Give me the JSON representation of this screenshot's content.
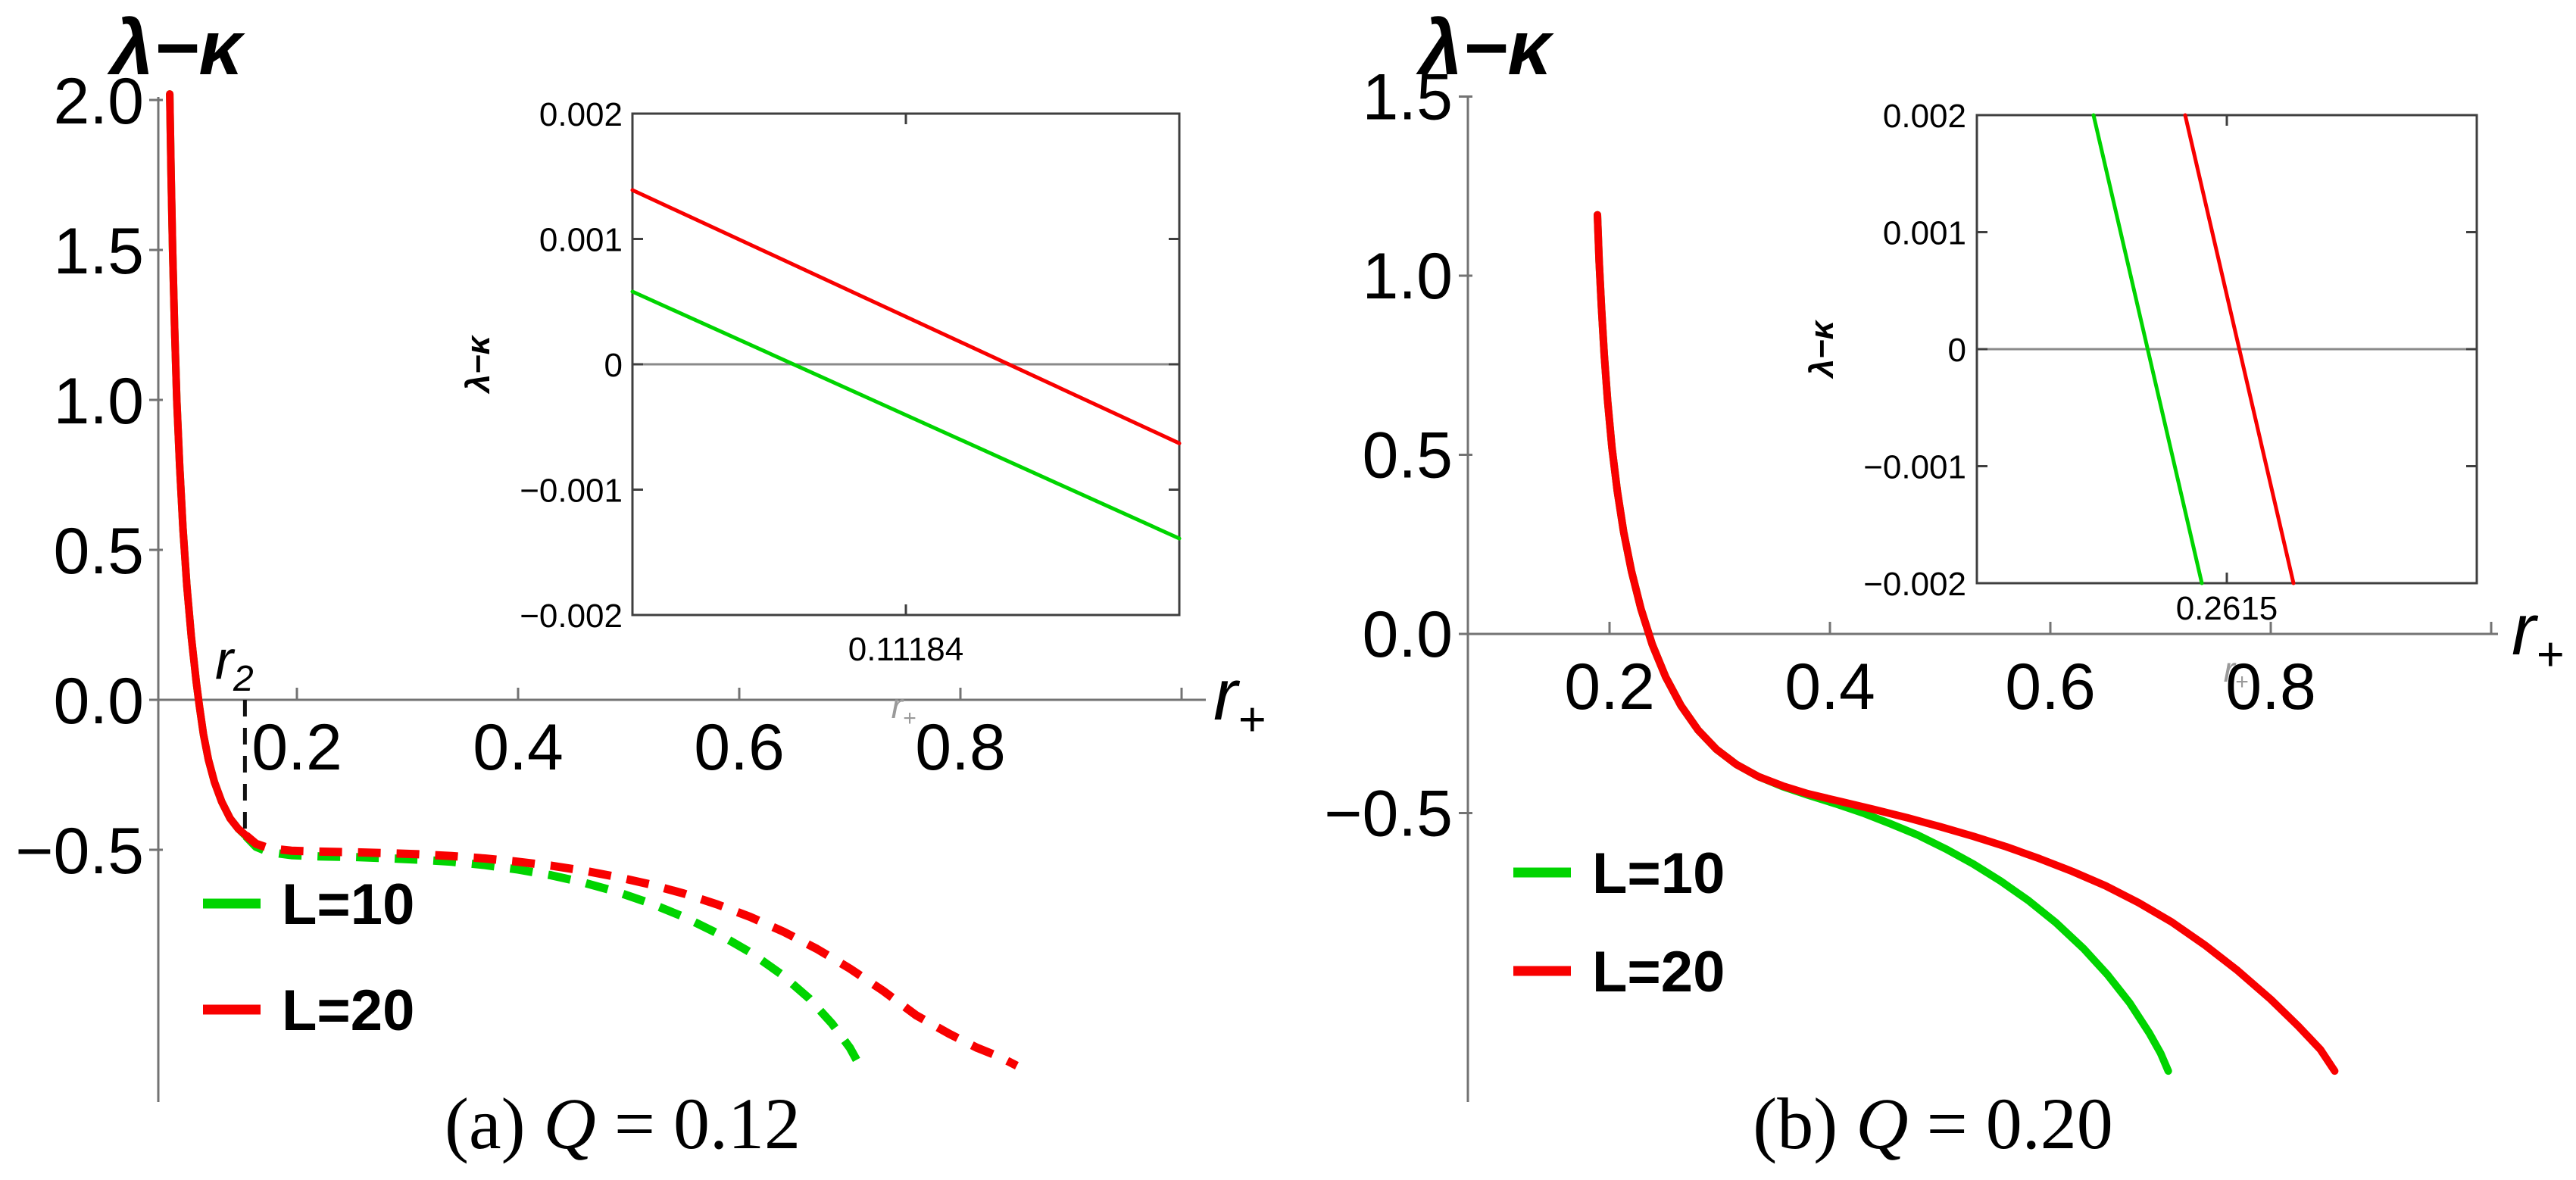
{
  "style": {
    "axis_color": "#737373",
    "inset_frame_color": "#3f3f3f",
    "inset_zero_line_color": "#8a8a8a",
    "text_color": "#000000",
    "muted_label_color": "#9a9a9a",
    "green": "#00d400",
    "red": "#f80000"
  },
  "chart_data": [
    {
      "id": "a",
      "type": "line",
      "caption": "(a) Q = 0.12",
      "caption_parts": {
        "prefix": "(a) ",
        "variable": "Q",
        "suffix": " = 0.12"
      },
      "ylabel": "λ−κ",
      "xlabel": {
        "base": "r",
        "sub": "+"
      },
      "xlim": [
        0.07,
        1.02
      ],
      "ylim": [
        -1.22,
        2.02
      ],
      "x_ticks": [
        {
          "value": 0.2,
          "label": "0.2"
        },
        {
          "value": 0.4,
          "label": "0.4"
        },
        {
          "value": 0.6,
          "label": "0.6"
        },
        {
          "value": 0.8,
          "label": "0.8"
        }
      ],
      "x_axis_end_tick": 1.0,
      "y_ticks": [
        {
          "value": 2.0,
          "label": "2.0"
        },
        {
          "value": 1.5,
          "label": "1.5"
        },
        {
          "value": 1.0,
          "label": "1.0"
        },
        {
          "value": 0.5,
          "label": "0.5"
        },
        {
          "value": 0.0,
          "label": "0.0"
        },
        {
          "value": -0.5,
          "label": "−0.5"
        }
      ],
      "marker": {
        "base": "r",
        "sub": "2",
        "x": 0.153
      },
      "legend": [
        {
          "label": "L=10",
          "color": "#00d400"
        },
        {
          "label": "L=20",
          "color": "#f80000"
        }
      ],
      "series": [
        {
          "name": "L=10",
          "color": "#00d400",
          "solid": [
            [
              0.085,
              2.02
            ],
            [
              0.0862,
              1.75
            ],
            [
              0.0876,
              1.5
            ],
            [
              0.0893,
              1.25
            ],
            [
              0.0914,
              1.0
            ],
            [
              0.094,
              0.78
            ],
            [
              0.097,
              0.57
            ],
            [
              0.1005,
              0.38
            ],
            [
              0.1045,
              0.21
            ],
            [
              0.109,
              0.06
            ],
            [
              0.1118,
              -0.02
            ],
            [
              0.1155,
              -0.115
            ],
            [
              0.12,
              -0.2
            ],
            [
              0.1255,
              -0.275
            ],
            [
              0.132,
              -0.34
            ],
            [
              0.1395,
              -0.395
            ],
            [
              0.147,
              -0.43
            ],
            [
              0.154,
              -0.455
            ]
          ],
          "dashed": [
            [
              0.154,
              -0.455
            ],
            [
              0.163,
              -0.49
            ],
            [
              0.175,
              -0.508
            ],
            [
              0.195,
              -0.518
            ],
            [
              0.22,
              -0.522
            ],
            [
              0.25,
              -0.524
            ],
            [
              0.28,
              -0.528
            ],
            [
              0.31,
              -0.533
            ],
            [
              0.34,
              -0.54
            ],
            [
              0.37,
              -0.551
            ],
            [
              0.4,
              -0.566
            ],
            [
              0.43,
              -0.585
            ],
            [
              0.46,
              -0.61
            ],
            [
              0.49,
              -0.641
            ],
            [
              0.52,
              -0.679
            ],
            [
              0.55,
              -0.724
            ],
            [
              0.58,
              -0.778
            ],
            [
              0.61,
              -0.842
            ],
            [
              0.638,
              -0.915
            ],
            [
              0.663,
              -0.995
            ],
            [
              0.684,
              -1.08
            ],
            [
              0.7,
              -1.16
            ],
            [
              0.709,
              -1.22
            ]
          ]
        },
        {
          "name": "L=20",
          "color": "#f80000",
          "solid": [
            [
              0.085,
              2.02
            ],
            [
              0.0862,
              1.75
            ],
            [
              0.0876,
              1.5
            ],
            [
              0.0893,
              1.25
            ],
            [
              0.0914,
              1.0
            ],
            [
              0.094,
              0.78
            ],
            [
              0.097,
              0.57
            ],
            [
              0.1005,
              0.38
            ],
            [
              0.1045,
              0.21
            ],
            [
              0.109,
              0.06
            ],
            [
              0.1118,
              -0.02
            ],
            [
              0.1155,
              -0.115
            ],
            [
              0.12,
              -0.2
            ],
            [
              0.1255,
              -0.275
            ],
            [
              0.132,
              -0.34
            ],
            [
              0.1395,
              -0.395
            ],
            [
              0.147,
              -0.43
            ],
            [
              0.154,
              -0.452
            ]
          ],
          "dashed": [
            [
              0.154,
              -0.452
            ],
            [
              0.163,
              -0.48
            ],
            [
              0.175,
              -0.495
            ],
            [
              0.195,
              -0.503
            ],
            [
              0.22,
              -0.506
            ],
            [
              0.25,
              -0.508
            ],
            [
              0.28,
              -0.511
            ],
            [
              0.31,
              -0.515
            ],
            [
              0.34,
              -0.521
            ],
            [
              0.37,
              -0.529
            ],
            [
              0.4,
              -0.54
            ],
            [
              0.43,
              -0.553
            ],
            [
              0.46,
              -0.57
            ],
            [
              0.49,
              -0.591
            ],
            [
              0.52,
              -0.616
            ],
            [
              0.55,
              -0.646
            ],
            [
              0.58,
              -0.682
            ],
            [
              0.61,
              -0.724
            ],
            [
              0.64,
              -0.773
            ],
            [
              0.67,
              -0.83
            ],
            [
              0.7,
              -0.896
            ],
            [
              0.73,
              -0.97
            ],
            [
              0.76,
              -1.052
            ],
            [
              0.79,
              -1.114
            ],
            [
              0.815,
              -1.16
            ],
            [
              0.835,
              -1.19
            ],
            [
              0.851,
              -1.22
            ]
          ]
        }
      ],
      "inset": {
        "ylabel": "λ−κ",
        "xlabel": {
          "base": "r",
          "sub": "+"
        },
        "xlim": [
          0.11174,
          0.11194
        ],
        "ylim": [
          -0.002,
          0.002
        ],
        "x_ticks": [
          {
            "value": 0.11184,
            "label": "0.11184"
          }
        ],
        "y_ticks": [
          {
            "value": 0.002,
            "label": "0.002"
          },
          {
            "value": 0.001,
            "label": "0.001"
          },
          {
            "value": 0,
            "label": "0"
          },
          {
            "value": -0.001,
            "label": "−0.001"
          },
          {
            "value": -0.002,
            "label": "−0.002"
          }
        ],
        "series": [
          {
            "name": "L=10",
            "color": "#00d400",
            "points": [
              [
                0.11174,
                0.00058
              ],
              [
                0.11194,
                -0.00139
              ]
            ]
          },
          {
            "name": "L=20",
            "color": "#f80000",
            "points": [
              [
                0.11174,
                0.00139
              ],
              [
                0.11194,
                -0.00063
              ]
            ]
          }
        ]
      }
    },
    {
      "id": "b",
      "type": "line",
      "caption": "(b) Q = 0.20",
      "caption_parts": {
        "prefix": "(b) ",
        "variable": "Q",
        "suffix": " = 0.20"
      },
      "ylabel": "λ−κ",
      "xlabel": {
        "base": "r",
        "sub": "+"
      },
      "xlim": [
        0.07,
        1.02
      ],
      "ylim": [
        -1.22,
        1.5
      ],
      "x_ticks": [
        {
          "value": 0.2,
          "label": "0.2"
        },
        {
          "value": 0.4,
          "label": "0.4"
        },
        {
          "value": 0.6,
          "label": "0.6"
        },
        {
          "value": 0.8,
          "label": "0.8"
        }
      ],
      "x_axis_end_tick": 1.0,
      "y_ticks": [
        {
          "value": 1.5,
          "label": "1.5"
        },
        {
          "value": 1.0,
          "label": "1.0"
        },
        {
          "value": 0.5,
          "label": "0.5"
        },
        {
          "value": 0.0,
          "label": "0.0"
        },
        {
          "value": -0.5,
          "label": "−0.5"
        }
      ],
      "legend": [
        {
          "label": "L=10",
          "color": "#00d400"
        },
        {
          "label": "L=20",
          "color": "#f80000"
        }
      ],
      "series": [
        {
          "name": "L=10",
          "color": "#00d400",
          "solid": [
            [
              0.189,
              1.17
            ],
            [
              0.1906,
              1.04
            ],
            [
              0.1927,
              0.91
            ],
            [
              0.1952,
              0.78
            ],
            [
              0.1983,
              0.65
            ],
            [
              0.2022,
              0.52
            ],
            [
              0.207,
              0.4
            ],
            [
              0.2128,
              0.285
            ],
            [
              0.2199,
              0.175
            ],
            [
              0.2285,
              0.07
            ],
            [
              0.2388,
              -0.03
            ],
            [
              0.2509,
              -0.12
            ],
            [
              0.2648,
              -0.2
            ],
            [
              0.2803,
              -0.268
            ],
            [
              0.297,
              -0.322
            ],
            [
              0.315,
              -0.364
            ],
            [
              0.335,
              -0.398
            ],
            [
              0.357,
              -0.426
            ],
            [
              0.38,
              -0.45
            ],
            [
              0.405,
              -0.474
            ],
            [
              0.43,
              -0.5
            ],
            [
              0.455,
              -0.53
            ],
            [
              0.48,
              -0.562
            ],
            [
              0.505,
              -0.6
            ],
            [
              0.53,
              -0.642
            ],
            [
              0.555,
              -0.69
            ],
            [
              0.58,
              -0.744
            ],
            [
              0.605,
              -0.806
            ],
            [
              0.63,
              -0.878
            ],
            [
              0.652,
              -0.952
            ],
            [
              0.672,
              -1.03
            ],
            [
              0.69,
              -1.115
            ],
            [
              0.7,
              -1.17
            ],
            [
              0.707,
              -1.22
            ]
          ],
          "dashed": []
        },
        {
          "name": "L=20",
          "color": "#f80000",
          "solid": [
            [
              0.189,
              1.17
            ],
            [
              0.1906,
              1.04
            ],
            [
              0.1927,
              0.91
            ],
            [
              0.1952,
              0.78
            ],
            [
              0.1983,
              0.65
            ],
            [
              0.2022,
              0.52
            ],
            [
              0.207,
              0.4
            ],
            [
              0.2128,
              0.285
            ],
            [
              0.2199,
              0.175
            ],
            [
              0.2285,
              0.07
            ],
            [
              0.2388,
              -0.03
            ],
            [
              0.2509,
              -0.12
            ],
            [
              0.2648,
              -0.2
            ],
            [
              0.2803,
              -0.268
            ],
            [
              0.297,
              -0.322
            ],
            [
              0.315,
              -0.364
            ],
            [
              0.335,
              -0.398
            ],
            [
              0.357,
              -0.424
            ],
            [
              0.38,
              -0.446
            ],
            [
              0.41,
              -0.468
            ],
            [
              0.44,
              -0.49
            ],
            [
              0.47,
              -0.513
            ],
            [
              0.5,
              -0.538
            ],
            [
              0.53,
              -0.565
            ],
            [
              0.56,
              -0.594
            ],
            [
              0.59,
              -0.627
            ],
            [
              0.62,
              -0.663
            ],
            [
              0.65,
              -0.703
            ],
            [
              0.68,
              -0.75
            ],
            [
              0.71,
              -0.804
            ],
            [
              0.74,
              -0.868
            ],
            [
              0.77,
              -0.94
            ],
            [
              0.8,
              -1.02
            ],
            [
              0.825,
              -1.095
            ],
            [
              0.845,
              -1.16
            ],
            [
              0.858,
              -1.22
            ]
          ],
          "dashed": []
        }
      ],
      "inset": {
        "ylabel": "λ−κ",
        "xlabel": {
          "base": "r",
          "sub": "+"
        },
        "xlim": [
          0.2609,
          0.2621
        ],
        "ylim": [
          -0.002,
          0.002
        ],
        "x_ticks": [
          {
            "value": 0.2615,
            "label": "0.2615"
          }
        ],
        "y_ticks": [
          {
            "value": 0.002,
            "label": "0.002"
          },
          {
            "value": 0.001,
            "label": "0.001"
          },
          {
            "value": 0,
            "label": "0"
          },
          {
            "value": -0.001,
            "label": "−0.001"
          },
          {
            "value": -0.002,
            "label": "−0.002"
          }
        ],
        "series": [
          {
            "name": "L=10",
            "color": "#00d400",
            "points": [
              [
                0.26118,
                0.002
              ],
              [
                0.26144,
                -0.002
              ]
            ]
          },
          {
            "name": "L=20",
            "color": "#f80000",
            "points": [
              [
                0.2614,
                0.002
              ],
              [
                0.26166,
                -0.002
              ]
            ]
          }
        ]
      }
    }
  ]
}
